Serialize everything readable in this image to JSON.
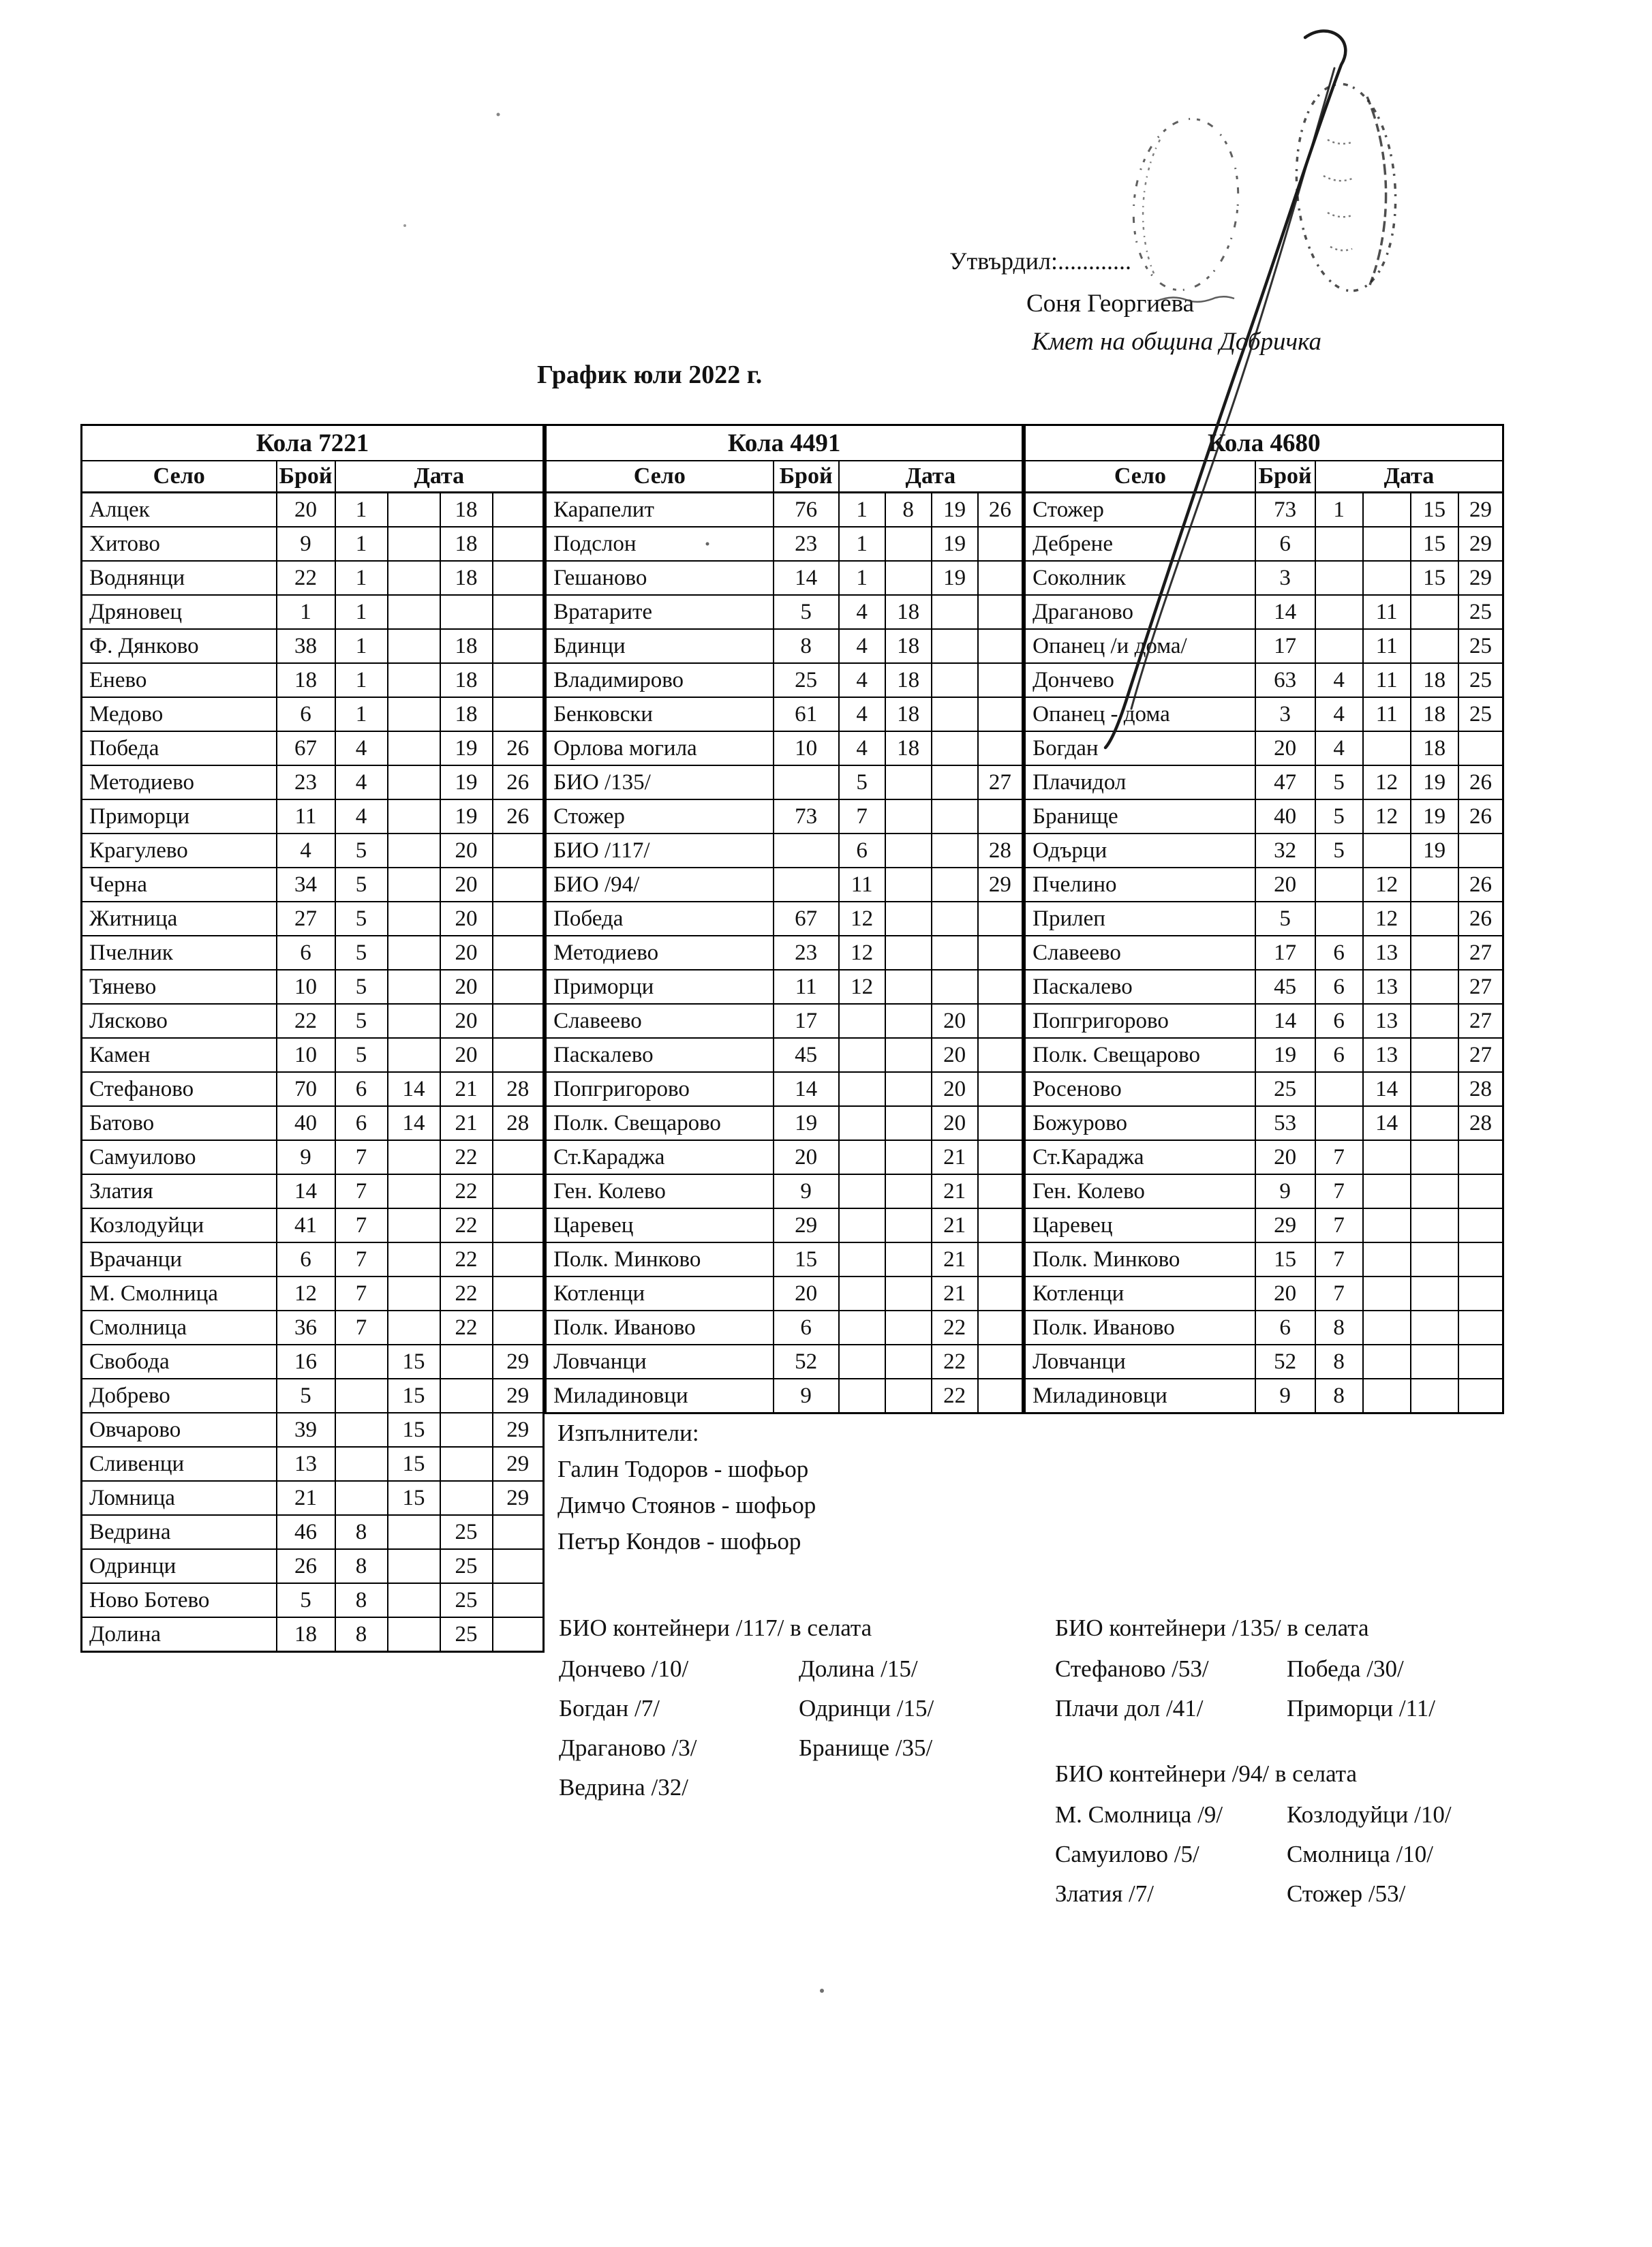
{
  "colors": {
    "ink": "#111111",
    "paper": "#ffffff"
  },
  "header": {
    "approve_label": "Утвърдил:............",
    "approver_name": "Соня Георгиева",
    "approver_title": "Кмет  на община Добричка",
    "title": "График юли 2022 г."
  },
  "marks": {
    "stamp_left": "round-stamp-imprint",
    "stamp_right": "round-stamp-imprint",
    "signature": "pen-signature-stroke"
  },
  "tables": [
    {
      "title": "Кола 7221",
      "col_village": "Село",
      "col_count": "Брой",
      "col_date": "Дата",
      "rows": [
        {
          "village": "Алцек",
          "count": "20",
          "dates": [
            "1",
            "",
            "18",
            ""
          ]
        },
        {
          "village": "Хитово",
          "count": "9",
          "dates": [
            "1",
            "",
            "18",
            ""
          ]
        },
        {
          "village": "Воднянци",
          "count": "22",
          "dates": [
            "1",
            "",
            "18",
            ""
          ]
        },
        {
          "village": "Дряновец",
          "count": "1",
          "dates": [
            "1",
            "",
            "",
            ""
          ]
        },
        {
          "village": "Ф. Дянково",
          "count": "38",
          "dates": [
            "1",
            "",
            "18",
            ""
          ]
        },
        {
          "village": "Енево",
          "count": "18",
          "dates": [
            "1",
            "",
            "18",
            ""
          ]
        },
        {
          "village": "Медово",
          "count": "6",
          "dates": [
            "1",
            "",
            "18",
            ""
          ]
        },
        {
          "village": "Победа",
          "count": "67",
          "dates": [
            "4",
            "",
            "19",
            "26"
          ]
        },
        {
          "village": "Методиево",
          "count": "23",
          "dates": [
            "4",
            "",
            "19",
            "26"
          ]
        },
        {
          "village": "Приморци",
          "count": "11",
          "dates": [
            "4",
            "",
            "19",
            "26"
          ]
        },
        {
          "village": "Крагулево",
          "count": "4",
          "dates": [
            "5",
            "",
            "20",
            ""
          ]
        },
        {
          "village": "Черна",
          "count": "34",
          "dates": [
            "5",
            "",
            "20",
            ""
          ]
        },
        {
          "village": "Житница",
          "count": "27",
          "dates": [
            "5",
            "",
            "20",
            ""
          ]
        },
        {
          "village": "Пчелник",
          "count": "6",
          "dates": [
            "5",
            "",
            "20",
            ""
          ]
        },
        {
          "village": "Тянево",
          "count": "10",
          "dates": [
            "5",
            "",
            "20",
            ""
          ]
        },
        {
          "village": "Лясково",
          "count": "22",
          "dates": [
            "5",
            "",
            "20",
            ""
          ]
        },
        {
          "village": "Камен",
          "count": "10",
          "dates": [
            "5",
            "",
            "20",
            ""
          ]
        },
        {
          "village": "Стефаново",
          "count": "70",
          "dates": [
            "6",
            "14",
            "21",
            "28"
          ]
        },
        {
          "village": "Батово",
          "count": "40",
          "dates": [
            "6",
            "14",
            "21",
            "28"
          ]
        },
        {
          "village": "Самуилово",
          "count": "9",
          "dates": [
            "7",
            "",
            "22",
            ""
          ]
        },
        {
          "village": "Златия",
          "count": "14",
          "dates": [
            "7",
            "",
            "22",
            ""
          ]
        },
        {
          "village": "Козлодуйци",
          "count": "41",
          "dates": [
            "7",
            "",
            "22",
            ""
          ]
        },
        {
          "village": "Врачанци",
          "count": "6",
          "dates": [
            "7",
            "",
            "22",
            ""
          ]
        },
        {
          "village": "М. Смолница",
          "count": "12",
          "dates": [
            "7",
            "",
            "22",
            ""
          ]
        },
        {
          "village": "Смолница",
          "count": "36",
          "dates": [
            "7",
            "",
            "22",
            ""
          ]
        },
        {
          "village": "Свобода",
          "count": "16",
          "dates": [
            "",
            "15",
            "",
            "29"
          ]
        },
        {
          "village": "Добрево",
          "count": "5",
          "dates": [
            "",
            "15",
            "",
            "29"
          ]
        },
        {
          "village": "Овчарово",
          "count": "39",
          "dates": [
            "",
            "15",
            "",
            "29"
          ]
        },
        {
          "village": "Сливенци",
          "count": "13",
          "dates": [
            "",
            "15",
            "",
            "29"
          ]
        },
        {
          "village": "Ломница",
          "count": "21",
          "dates": [
            "",
            "15",
            "",
            "29"
          ]
        },
        {
          "village": "Ведрина",
          "count": "46",
          "dates": [
            "8",
            "",
            "25",
            ""
          ]
        },
        {
          "village": "Одринци",
          "count": "26",
          "dates": [
            "8",
            "",
            "25",
            ""
          ]
        },
        {
          "village": "Ново Ботево",
          "count": "5",
          "dates": [
            "8",
            "",
            "25",
            ""
          ]
        },
        {
          "village": "Долина",
          "count": "18",
          "dates": [
            "8",
            "",
            "25",
            ""
          ]
        }
      ]
    },
    {
      "title": "Кола 4491",
      "col_village": "Село",
      "col_count": "Брой",
      "col_date": "Дата",
      "rows": [
        {
          "village": "Карапелит",
          "count": "76",
          "dates": [
            "1",
            "8",
            "19",
            "26"
          ]
        },
        {
          "village": "Подслон",
          "count": "23",
          "dates": [
            "1",
            "",
            "19",
            ""
          ]
        },
        {
          "village": "Гешаново",
          "count": "14",
          "dates": [
            "1",
            "",
            "19",
            ""
          ]
        },
        {
          "village": "Вратарите",
          "count": "5",
          "dates": [
            "4",
            "18",
            "",
            ""
          ]
        },
        {
          "village": "Бдинци",
          "count": "8",
          "dates": [
            "4",
            "18",
            "",
            ""
          ]
        },
        {
          "village": "Владимирово",
          "count": "25",
          "dates": [
            "4",
            "18",
            "",
            ""
          ]
        },
        {
          "village": "Бенковски",
          "count": "61",
          "dates": [
            "4",
            "18",
            "",
            ""
          ]
        },
        {
          "village": "Орлова могила",
          "count": "10",
          "dates": [
            "4",
            "18",
            "",
            ""
          ]
        },
        {
          "village": "БИО /135/",
          "count": "",
          "dates": [
            "5",
            "",
            "",
            "27"
          ]
        },
        {
          "village": "Стожер",
          "count": "73",
          "dates": [
            "7",
            "",
            "",
            ""
          ]
        },
        {
          "village": "БИО /117/",
          "count": "",
          "dates": [
            "6",
            "",
            "",
            "28"
          ]
        },
        {
          "village": "БИО /94/",
          "count": "",
          "dates": [
            "11",
            "",
            "",
            "29"
          ]
        },
        {
          "village": "Победа",
          "count": "67",
          "dates": [
            "12",
            "",
            "",
            ""
          ]
        },
        {
          "village": "Методиево",
          "count": "23",
          "dates": [
            "12",
            "",
            "",
            ""
          ]
        },
        {
          "village": "Приморци",
          "count": "11",
          "dates": [
            "12",
            "",
            "",
            ""
          ]
        },
        {
          "village": "Славеево",
          "count": "17",
          "dates": [
            "",
            "",
            "20",
            ""
          ]
        },
        {
          "village": "Паскалево",
          "count": "45",
          "dates": [
            "",
            "",
            "20",
            ""
          ]
        },
        {
          "village": "Попгригорово",
          "count": "14",
          "dates": [
            "",
            "",
            "20",
            ""
          ]
        },
        {
          "village": "Полк. Свещарово",
          "count": "19",
          "dates": [
            "",
            "",
            "20",
            ""
          ]
        },
        {
          "village": "Ст.Караджа",
          "count": "20",
          "dates": [
            "",
            "",
            "21",
            ""
          ]
        },
        {
          "village": "Ген. Колево",
          "count": "9",
          "dates": [
            "",
            "",
            "21",
            ""
          ]
        },
        {
          "village": "Царевец",
          "count": "29",
          "dates": [
            "",
            "",
            "21",
            ""
          ]
        },
        {
          "village": "Полк. Минково",
          "count": "15",
          "dates": [
            "",
            "",
            "21",
            ""
          ]
        },
        {
          "village": "Котленци",
          "count": "20",
          "dates": [
            "",
            "",
            "21",
            ""
          ]
        },
        {
          "village": "Полк. Иваново",
          "count": "6",
          "dates": [
            "",
            "",
            "22",
            ""
          ]
        },
        {
          "village": "Ловчанци",
          "count": "52",
          "dates": [
            "",
            "",
            "22",
            ""
          ]
        },
        {
          "village": "Миладиновци",
          "count": "9",
          "dates": [
            "",
            "",
            "22",
            ""
          ]
        }
      ]
    },
    {
      "title": "Кола 4680",
      "col_village": "Село",
      "col_count": "Брой",
      "col_date": "Дата",
      "rows": [
        {
          "village": "Стожер",
          "count": "73",
          "dates": [
            "1",
            "",
            "15",
            "29"
          ]
        },
        {
          "village": "Дебрене",
          "count": "6",
          "dates": [
            "",
            "",
            "15",
            "29"
          ]
        },
        {
          "village": "Соколник",
          "count": "3",
          "dates": [
            "",
            "",
            "15",
            "29"
          ]
        },
        {
          "village": "Драганово",
          "count": "14",
          "dates": [
            "",
            "11",
            "",
            "25"
          ]
        },
        {
          "village": "Опанец /и дома/",
          "count": "17",
          "dates": [
            "",
            "11",
            "",
            "25"
          ]
        },
        {
          "village": "Дончево",
          "count": "63",
          "dates": [
            "4",
            "11",
            "18",
            "25"
          ]
        },
        {
          "village": "Опанец - дома",
          "count": "3",
          "dates": [
            "4",
            "11",
            "18",
            "25"
          ]
        },
        {
          "village": "Богдан",
          "count": "20",
          "dates": [
            "4",
            "",
            "18",
            ""
          ]
        },
        {
          "village": "Плачидол",
          "count": "47",
          "dates": [
            "5",
            "12",
            "19",
            "26"
          ]
        },
        {
          "village": "Бранище",
          "count": "40",
          "dates": [
            "5",
            "12",
            "19",
            "26"
          ]
        },
        {
          "village": "Одърци",
          "count": "32",
          "dates": [
            "5",
            "",
            "19",
            ""
          ]
        },
        {
          "village": "Пчелино",
          "count": "20",
          "dates": [
            "",
            "12",
            "",
            "26"
          ]
        },
        {
          "village": "Прилеп",
          "count": "5",
          "dates": [
            "",
            "12",
            "",
            "26"
          ]
        },
        {
          "village": "Славеево",
          "count": "17",
          "dates": [
            "6",
            "13",
            "",
            "27"
          ]
        },
        {
          "village": "Паскалево",
          "count": "45",
          "dates": [
            "6",
            "13",
            "",
            "27"
          ]
        },
        {
          "village": "Попгригорово",
          "count": "14",
          "dates": [
            "6",
            "13",
            "",
            "27"
          ]
        },
        {
          "village": "Полк. Свещарово",
          "count": "19",
          "dates": [
            "6",
            "13",
            "",
            "27"
          ]
        },
        {
          "village": "Росеново",
          "count": "25",
          "dates": [
            "",
            "14",
            "",
            "28"
          ]
        },
        {
          "village": "Божурово",
          "count": "53",
          "dates": [
            "",
            "14",
            "",
            "28"
          ]
        },
        {
          "village": "Ст.Караджа",
          "count": "20",
          "dates": [
            "7",
            "",
            "",
            ""
          ]
        },
        {
          "village": "Ген. Колево",
          "count": "9",
          "dates": [
            "7",
            "",
            "",
            ""
          ]
        },
        {
          "village": "Царевец",
          "count": "29",
          "dates": [
            "7",
            "",
            "",
            ""
          ]
        },
        {
          "village": "Полк. Минково",
          "count": "15",
          "dates": [
            "7",
            "",
            "",
            ""
          ]
        },
        {
          "village": "Котленци",
          "count": "20",
          "dates": [
            "7",
            "",
            "",
            ""
          ]
        },
        {
          "village": "Полк. Иваново",
          "count": "6",
          "dates": [
            "8",
            "",
            "",
            ""
          ]
        },
        {
          "village": "Ловчанци",
          "count": "52",
          "dates": [
            "8",
            "",
            "",
            ""
          ]
        },
        {
          "village": "Миладиновци",
          "count": "9",
          "dates": [
            "8",
            "",
            "",
            ""
          ]
        }
      ]
    }
  ],
  "executors": {
    "heading": "Изпълнители:",
    "drivers": [
      "Галин Тодоров - шофьор",
      "Димчо Стоянов - шофьор",
      "Петър Кондов - шофьор"
    ]
  },
  "bio_sections": [
    {
      "heading": "БИО контейнери /117/ в селата",
      "left": [
        "Дончево /10/",
        "Богдан /7/",
        "Драганово /3/",
        "Ведрина /32/"
      ],
      "right": [
        "Долина /15/",
        "Одринци /15/",
        "Бранище /35/"
      ]
    },
    {
      "heading": "БИО контейнери /135/ в селата",
      "left": [
        "Стефаново /53/",
        "Плачи дол /41/"
      ],
      "right": [
        "Победа /30/",
        "Приморци /11/"
      ]
    },
    {
      "heading": "БИО контейнери /94/ в селата",
      "left": [
        "М. Смолница /9/",
        "Самуилово /5/",
        "Златия /7/"
      ],
      "right": [
        "Козлодуйци /10/",
        "Смолница /10/",
        "Стожер /53/"
      ]
    }
  ]
}
